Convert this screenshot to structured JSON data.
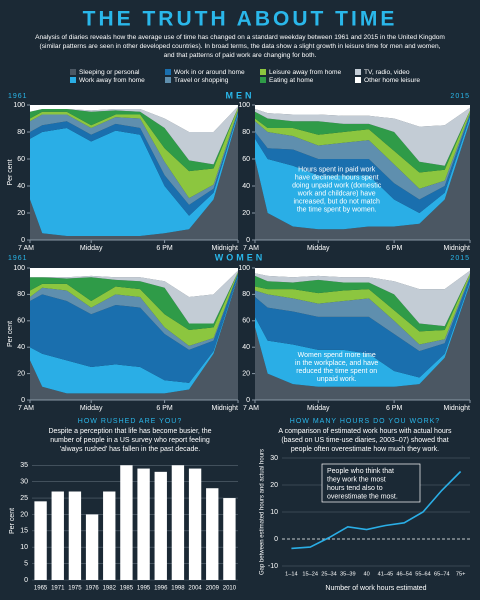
{
  "title": "THE TRUTH ABOUT TIME",
  "intro": [
    "Analysis of diaries reveals how the average use of time has changed on a standard weekday between 1961 and 2015 in the United Kingdom",
    "(similar patterns are seen in other developed countries). In broad terms, the data show a slight growth in leisure time for men and women,",
    "and that patterns of paid work are changing for both."
  ],
  "sections": [
    "MEN",
    "WOMEN"
  ],
  "chart_data": [
    {
      "type": "area",
      "title": "1961",
      "ylabel": "Per cent",
      "x": [
        7,
        8,
        10,
        12,
        14,
        16,
        18,
        20,
        22,
        24
      ],
      "xlim": [
        7,
        24
      ],
      "xticks": [
        {
          "value": 7,
          "label": "7 AM"
        },
        {
          "value": 12,
          "label": "Midday"
        },
        {
          "value": 18,
          "label": "6 PM"
        },
        {
          "value": 24,
          "label": "Midnight"
        }
      ],
      "ylim": [
        0,
        100
      ],
      "yticks": [
        0,
        20,
        40,
        60,
        80,
        100
      ],
      "series": [
        {
          "name": "Sleeping or personal",
          "color": "#4b5763",
          "values": [
            30,
            5,
            3,
            3,
            3,
            3,
            5,
            8,
            30,
            92
          ]
        },
        {
          "name": "Work away from home",
          "color": "#2aaee6",
          "values": [
            45,
            75,
            80,
            70,
            78,
            75,
            35,
            10,
            5,
            2
          ]
        },
        {
          "name": "Work in or around home",
          "color": "#1a6fae",
          "values": [
            5,
            5,
            5,
            5,
            5,
            5,
            8,
            8,
            3,
            1
          ]
        },
        {
          "name": "Travel or shopping",
          "color": "#5f8fae",
          "values": [
            8,
            8,
            5,
            5,
            5,
            7,
            10,
            5,
            3,
            1
          ]
        },
        {
          "name": "Leisure away from home",
          "color": "#8cc63f",
          "values": [
            2,
            2,
            2,
            2,
            2,
            3,
            10,
            20,
            12,
            2
          ]
        },
        {
          "name": "Eating at home",
          "color": "#2f9b48",
          "values": [
            5,
            2,
            2,
            10,
            3,
            2,
            15,
            8,
            3,
            0
          ]
        },
        {
          "name": "TV, radio, video",
          "color": "#c3ccd5",
          "values": [
            0,
            0,
            0,
            1,
            1,
            2,
            7,
            21,
            24,
            1
          ]
        },
        {
          "name": "Other home leisure",
          "color": "#ffffff",
          "values": [
            5,
            3,
            3,
            4,
            3,
            3,
            10,
            20,
            20,
            1
          ]
        }
      ]
    },
    {
      "type": "area",
      "title": "2015",
      "x": [
        7,
        8,
        10,
        12,
        14,
        16,
        18,
        20,
        22,
        24
      ],
      "xlim": [
        7,
        24
      ],
      "xticks": [
        {
          "value": 7,
          "label": "7 AM"
        },
        {
          "value": 12,
          "label": "Midday"
        },
        {
          "value": 18,
          "label": "6 PM"
        },
        {
          "value": 24,
          "label": "Midnight"
        }
      ],
      "ylim": [
        0,
        100
      ],
      "yticks": [
        0,
        20,
        40,
        60,
        80,
        100
      ],
      "annotation": [
        "Hours spent in paid work",
        "have declined; hours spent",
        "doing unpaid work (domestic",
        "work and childcare) have",
        "increased, but do not match",
        "the time spent by women."
      ],
      "series": [
        {
          "values": [
            60,
            20,
            10,
            8,
            8,
            10,
            10,
            12,
            30,
            88
          ]
        },
        {
          "values": [
            15,
            40,
            45,
            40,
            40,
            38,
            20,
            8,
            5,
            3
          ]
        },
        {
          "values": [
            5,
            8,
            12,
            12,
            12,
            12,
            12,
            10,
            5,
            2
          ]
        },
        {
          "values": [
            8,
            12,
            10,
            10,
            12,
            14,
            14,
            8,
            4,
            1
          ]
        },
        {
          "values": [
            2,
            3,
            6,
            8,
            8,
            8,
            10,
            12,
            8,
            2
          ]
        },
        {
          "values": [
            5,
            7,
            5,
            10,
            6,
            4,
            14,
            8,
            3,
            0
          ]
        },
        {
          "values": [
            2,
            4,
            5,
            5,
            6,
            6,
            10,
            26,
            30,
            2
          ]
        },
        {
          "values": [
            3,
            6,
            7,
            7,
            8,
            8,
            10,
            16,
            15,
            2
          ]
        }
      ]
    },
    {
      "type": "area",
      "title": "1961",
      "ylabel": "Per cent",
      "x": [
        7,
        8,
        10,
        12,
        14,
        16,
        18,
        20,
        22,
        24
      ],
      "xlim": [
        7,
        24
      ],
      "xticks": [
        {
          "value": 7,
          "label": "7 AM"
        },
        {
          "value": 12,
          "label": "Midday"
        },
        {
          "value": 18,
          "label": "6 PM"
        },
        {
          "value": 24,
          "label": "Midnight"
        }
      ],
      "ylim": [
        0,
        100
      ],
      "yticks": [
        0,
        20,
        40,
        60,
        80,
        100
      ],
      "series": [
        {
          "values": [
            30,
            10,
            5,
            5,
            5,
            5,
            5,
            8,
            35,
            93
          ]
        },
        {
          "values": [
            10,
            25,
            25,
            20,
            22,
            20,
            10,
            5,
            2,
            1
          ]
        },
        {
          "values": [
            35,
            45,
            45,
            40,
            45,
            45,
            35,
            25,
            8,
            2
          ]
        },
        {
          "values": [
            3,
            5,
            8,
            5,
            8,
            8,
            5,
            3,
            2,
            0
          ]
        },
        {
          "values": [
            5,
            3,
            5,
            5,
            6,
            6,
            10,
            12,
            8,
            1
          ]
        },
        {
          "values": [
            10,
            5,
            4,
            18,
            5,
            6,
            20,
            5,
            3,
            0
          ]
        },
        {
          "values": [
            0,
            0,
            1,
            1,
            2,
            3,
            5,
            20,
            22,
            1
          ]
        },
        {
          "values": [
            7,
            7,
            7,
            6,
            7,
            7,
            10,
            22,
            20,
            2
          ]
        }
      ]
    },
    {
      "type": "area",
      "title": "2015",
      "x": [
        7,
        8,
        10,
        12,
        14,
        16,
        18,
        20,
        22,
        24
      ],
      "xlim": [
        7,
        24
      ],
      "xticks": [
        {
          "value": 7,
          "label": "7 AM"
        },
        {
          "value": 12,
          "label": "Midday"
        },
        {
          "value": 18,
          "label": "6 PM"
        },
        {
          "value": 24,
          "label": "Midnight"
        }
      ],
      "ylim": [
        0,
        100
      ],
      "yticks": [
        0,
        20,
        40,
        60,
        80,
        100
      ],
      "annotation": [
        "Women spend more time",
        "in the workplace, and have",
        "reduced the time spent on",
        "unpaid work."
      ],
      "series": [
        {
          "values": [
            55,
            20,
            12,
            10,
            10,
            10,
            10,
            12,
            32,
            88
          ]
        },
        {
          "values": [
            8,
            25,
            30,
            28,
            28,
            25,
            12,
            5,
            3,
            2
          ]
        },
        {
          "values": [
            15,
            25,
            25,
            25,
            25,
            28,
            28,
            20,
            8,
            3
          ]
        },
        {
          "values": [
            5,
            10,
            10,
            10,
            12,
            14,
            10,
            5,
            3,
            1
          ]
        },
        {
          "values": [
            3,
            4,
            7,
            8,
            8,
            7,
            8,
            10,
            7,
            2
          ]
        },
        {
          "values": [
            8,
            6,
            5,
            10,
            6,
            5,
            12,
            6,
            3,
            0
          ]
        },
        {
          "values": [
            2,
            4,
            4,
            3,
            4,
            4,
            10,
            26,
            28,
            2
          ]
        },
        {
          "values": [
            4,
            6,
            7,
            6,
            7,
            7,
            10,
            16,
            16,
            2
          ]
        }
      ]
    },
    {
      "type": "bar",
      "title": "HOW RUSHED ARE YOU?",
      "subtitle": [
        "Despite a perception that life has become busier, the",
        "number of people in a US survey who report feeling",
        "'always rushed' has fallen in the past decade."
      ],
      "ylabel": "Per cent",
      "color": "#ffffff",
      "grid": true,
      "categories": [
        "1965",
        "1971",
        "1975",
        "1976",
        "1982",
        "1985",
        "1995",
        "1996",
        "1998",
        "2004",
        "2009",
        "2010"
      ],
      "values": [
        24,
        27,
        27,
        20,
        27,
        35,
        34,
        33,
        35,
        34,
        28,
        25
      ],
      "ylim": [
        0,
        36
      ],
      "yticks": [
        0,
        5,
        10,
        15,
        20,
        25,
        30,
        35
      ]
    },
    {
      "type": "line",
      "title": "HOW MANY HOURS DO YOU WORK?",
      "subtitle": [
        "A comparison of estimated work hours with actual hours",
        "(based on US time-use diaries, 2003–07) showed that",
        "people often overestimate how much they work."
      ],
      "ylabel": "Gap between estimated hours and actual hours",
      "xlabel": "Number of work hours estimated",
      "color": "#2aaee6",
      "categories": [
        "1–14",
        "15–24",
        "25–34",
        "35–39",
        "40",
        "41–45",
        "46–54",
        "55–64",
        "65–74",
        "75+"
      ],
      "values": [
        -3.5,
        -3,
        0.5,
        4.5,
        3.5,
        5,
        6,
        10,
        18,
        25
      ],
      "ylim": [
        -10,
        30
      ],
      "yticks": [
        -10,
        0,
        10,
        20,
        30
      ],
      "annotation": [
        "People who think that",
        "they work the most",
        "hours tend also to",
        "overestimate the most."
      ]
    }
  ]
}
